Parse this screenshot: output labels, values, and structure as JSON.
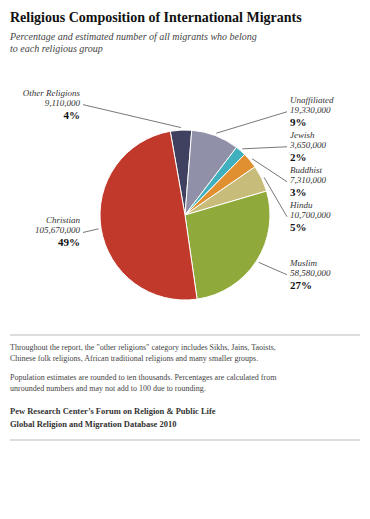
{
  "chart_data": {
    "type": "pie",
    "title": "Religious Composition of International Migrants",
    "subtitle": "Percentage and estimated number of all migrants who belong\nto each religious group",
    "categories": [
      "Other Religions",
      "Unaffiliated",
      "Jewish",
      "Buddhist",
      "Hindu",
      "Muslim",
      "Christian"
    ],
    "values": [
      4,
      9,
      2,
      3,
      5,
      27,
      49
    ],
    "value_labels": [
      "4%",
      "9%",
      "2%",
      "3%",
      "5%",
      "27%",
      "49%"
    ],
    "counts": [
      9110000,
      19330000,
      3650000,
      7310000,
      10700000,
      58580000,
      105670000
    ],
    "count_labels": [
      "9,110,000",
      "19,330,000",
      "3,650,000",
      "7,310,000",
      "10,700,000",
      "58,580,000",
      "105,670,000"
    ],
    "colors": [
      "#404060",
      "#9090a8",
      "#40b0be",
      "#e09030",
      "#c8bc7a",
      "#8faa3a",
      "#c0392b"
    ],
    "data_labels": true,
    "annotations": [
      "Throughout the report, the \"other religions\" category includes Sikhs, Jains, Taoists,\nChinese folk religions, African traditional religions and many smaller groups.",
      "Population estimates are rounded to ten thousands. Percentages are calculated from\nunrounded numbers and may not add to 100 due to rounding.",
      "Pew Research Center’s Forum on Religion & Public Life",
      "Global Religion and Migration Database 2010"
    ]
  }
}
